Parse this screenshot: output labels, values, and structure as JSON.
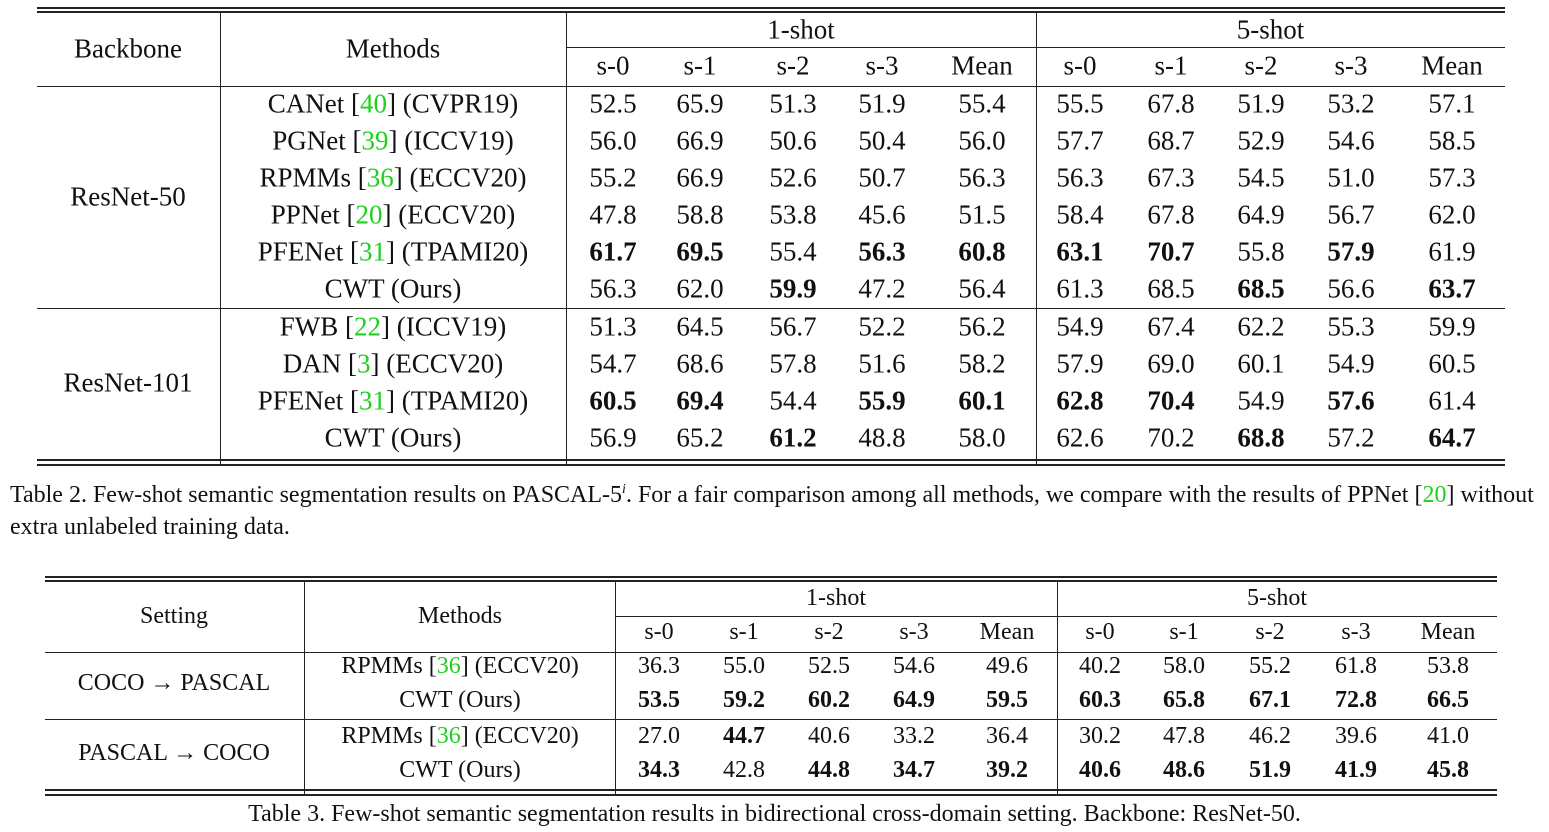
{
  "table_2": {
    "columns": [
      "Backbone",
      "Methods"
    ],
    "groups": [
      "1-shot",
      "5-shot"
    ],
    "subcolumns": [
      "s-0",
      "s-1",
      "s-2",
      "s-3",
      "Mean",
      "s-0",
      "s-1",
      "s-2",
      "s-3",
      "Mean"
    ],
    "sections": [
      {
        "label": "ResNet-50",
        "rows": [
          {
            "method": "CANet [40] (CVPR19)",
            "values": [
              "52.5",
              "65.9",
              "51.3",
              "51.9",
              "55.4",
              "55.5",
              "67.8",
              "51.9",
              "53.2",
              "57.1"
            ],
            "bold": []
          },
          {
            "method": "PGNet [39] (ICCV19)",
            "values": [
              "56.0",
              "66.9",
              "50.6",
              "50.4",
              "56.0",
              "57.7",
              "68.7",
              "52.9",
              "54.6",
              "58.5"
            ],
            "bold": []
          },
          {
            "method": "RPMMs [36] (ECCV20)",
            "values": [
              "55.2",
              "66.9",
              "52.6",
              "50.7",
              "56.3",
              "56.3",
              "67.3",
              "54.5",
              "51.0",
              "57.3"
            ],
            "bold": []
          },
          {
            "method": "PPNet [20] (ECCV20)",
            "values": [
              "47.8",
              "58.8",
              "53.8",
              "45.6",
              "51.5",
              "58.4",
              "67.8",
              "64.9",
              "56.7",
              "62.0"
            ],
            "bold": []
          },
          {
            "method": "PFENet [31] (TPAMI20)",
            "values": [
              "61.7",
              "69.5",
              "55.4",
              "56.3",
              "60.8",
              "63.1",
              "70.7",
              "55.8",
              "57.9",
              "61.9"
            ],
            "bold": [
              0,
              1,
              3,
              4,
              5,
              6,
              8
            ]
          },
          {
            "method": "CWT (Ours)",
            "values": [
              "56.3",
              "62.0",
              "59.9",
              "47.2",
              "56.4",
              "61.3",
              "68.5",
              "68.5",
              "56.6",
              "63.7"
            ],
            "bold": [
              2,
              7,
              9
            ]
          }
        ]
      },
      {
        "label": "ResNet-101",
        "rows": [
          {
            "method": "FWB [22] (ICCV19)",
            "values": [
              "51.3",
              "64.5",
              "56.7",
              "52.2",
              "56.2",
              "54.9",
              "67.4",
              "62.2",
              "55.3",
              "59.9"
            ],
            "bold": []
          },
          {
            "method": "DAN [3] (ECCV20)",
            "values": [
              "54.7",
              "68.6",
              "57.8",
              "51.6",
              "58.2",
              "57.9",
              "69.0",
              "60.1",
              "54.9",
              "60.5"
            ],
            "bold": []
          },
          {
            "method": "PFENet [31] (TPAMI20)",
            "values": [
              "60.5",
              "69.4",
              "54.4",
              "55.9",
              "60.1",
              "62.8",
              "70.4",
              "54.9",
              "57.6",
              "61.4"
            ],
            "bold": [
              0,
              1,
              3,
              4,
              5,
              6,
              8
            ]
          },
          {
            "method": "CWT (Ours)",
            "values": [
              "56.9",
              "65.2",
              "61.2",
              "48.8",
              "58.0",
              "62.6",
              "70.2",
              "68.8",
              "57.2",
              "64.7"
            ],
            "bold": [
              2,
              7,
              9
            ]
          }
        ]
      }
    ],
    "caption": {
      "before": "Table 2. Few-shot semantic segmentation results on PASCAL-5",
      "sup": "i",
      "after": ". For a fair comparison among all methods, we compare with the results of PPNet [20] without extra unlabeled training data."
    }
  },
  "table_3": {
    "columns": [
      "Setting",
      "Methods"
    ],
    "groups": [
      "1-shot",
      "5-shot"
    ],
    "subcolumns": [
      "s-0",
      "s-1",
      "s-2",
      "s-3",
      "Mean",
      "s-0",
      "s-1",
      "s-2",
      "s-3",
      "Mean"
    ],
    "sections": [
      {
        "label": "COCO → PASCAL",
        "rows": [
          {
            "method": "RPMMs [36] (ECCV20)",
            "values": [
              "36.3",
              "55.0",
              "52.5",
              "54.6",
              "49.6",
              "40.2",
              "58.0",
              "55.2",
              "61.8",
              "53.8"
            ],
            "bold": []
          },
          {
            "method": "CWT (Ours)",
            "values": [
              "53.5",
              "59.2",
              "60.2",
              "64.9",
              "59.5",
              "60.3",
              "65.8",
              "67.1",
              "72.8",
              "66.5"
            ],
            "bold": [
              0,
              1,
              2,
              3,
              4,
              5,
              6,
              7,
              8,
              9
            ]
          }
        ]
      },
      {
        "label": "PASCAL → COCO",
        "rows": [
          {
            "method": "RPMMs [36] (ECCV20)",
            "values": [
              "27.0",
              "44.7",
              "40.6",
              "33.2",
              "36.4",
              "30.2",
              "47.8",
              "46.2",
              "39.6",
              "41.0"
            ],
            "bold": [
              1
            ]
          },
          {
            "method": "CWT (Ours)",
            "values": [
              "34.3",
              "42.8",
              "44.8",
              "34.7",
              "39.2",
              "40.6",
              "48.6",
              "51.9",
              "41.9",
              "45.8"
            ],
            "bold": [
              0,
              2,
              3,
              4,
              5,
              6,
              7,
              8,
              9
            ]
          }
        ]
      }
    ],
    "caption": {
      "text": "Table 3. Few-shot semantic segmentation results in bidirectional cross-domain setting. Backbone: ResNet-50."
    }
  }
}
